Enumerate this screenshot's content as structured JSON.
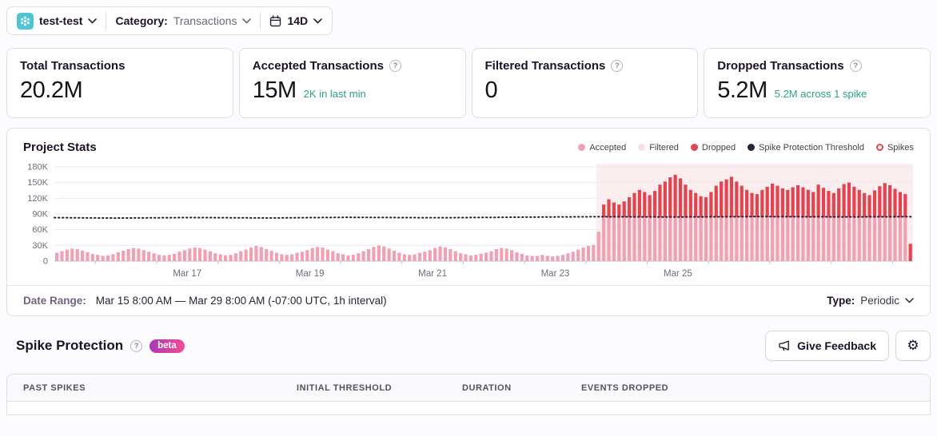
{
  "topbar": {
    "project_name": "test-test",
    "category_label": "Category:",
    "category_value": "Transactions",
    "period": "14D"
  },
  "cards": [
    {
      "title": "Total Transactions",
      "value": "20.2M",
      "sub": ""
    },
    {
      "title": "Accepted Transactions",
      "value": "15M",
      "sub": "2K in last min"
    },
    {
      "title": "Filtered Transactions",
      "value": "0",
      "sub": ""
    },
    {
      "title": "Dropped Transactions",
      "value": "5.2M",
      "sub": "5.2M across 1 spike"
    }
  ],
  "chart": {
    "title": "Project Stats"
  },
  "chart_data": {
    "type": "bar",
    "title": "Project Stats",
    "unit": "thousands of transactions per 2h bucket",
    "x_start": "Mar 15 8:00 AM",
    "x_end": "Mar 29 8:00 AM",
    "total_hours": 336,
    "xticks": [
      "Mar 17",
      "Mar 19",
      "Mar 21",
      "Mar 23",
      "Mar 25"
    ],
    "xtick_hours": [
      52,
      100,
      148,
      196,
      244
    ],
    "yticks": [
      [
        "180K",
        180
      ],
      [
        "150K",
        150
      ],
      [
        "120K",
        120
      ],
      [
        "90K",
        90
      ],
      [
        "60K",
        60
      ],
      [
        "30K",
        30
      ],
      [
        "0",
        0
      ]
    ],
    "ylim": [
      0,
      186
    ],
    "grid": true,
    "legend_position": "top-right",
    "spike_start_index": 106,
    "series": {
      "accepted": [
        16,
        19,
        22,
        24,
        23,
        20,
        17,
        14,
        12,
        10,
        11,
        13,
        17,
        20,
        23,
        25,
        24,
        21,
        18,
        15,
        12,
        11,
        12,
        14,
        18,
        21,
        24,
        26,
        25,
        22,
        19,
        15,
        13,
        11,
        12,
        15,
        19,
        22,
        26,
        29,
        27,
        23,
        20,
        16,
        13,
        12,
        13,
        16,
        18,
        21,
        25,
        27,
        26,
        22,
        19,
        15,
        13,
        11,
        12,
        15,
        19,
        23,
        27,
        30,
        28,
        24,
        20,
        16,
        13,
        12,
        13,
        16,
        18,
        21,
        25,
        28,
        26,
        23,
        19,
        15,
        13,
        11,
        12,
        14,
        16,
        19,
        23,
        25,
        24,
        21,
        17,
        14,
        11,
        10,
        10,
        12,
        10,
        9,
        10,
        12,
        15,
        18,
        22,
        26,
        29,
        31,
        56,
        84,
        84,
        84,
        84,
        84,
        84,
        84,
        84,
        84,
        84,
        84,
        84,
        84,
        84,
        84,
        84,
        84,
        84,
        84,
        84,
        84,
        84,
        84,
        84,
        84,
        84,
        84,
        84,
        84,
        84,
        84,
        84,
        84,
        84,
        84,
        84,
        84,
        84,
        84,
        84,
        84,
        84,
        84,
        84,
        84,
        84,
        84,
        84,
        84,
        84,
        84,
        84,
        84,
        84,
        84,
        84,
        84,
        84,
        84,
        84,
        0
      ],
      "dropped_start_index": 107,
      "dropped": [
        24,
        34,
        28,
        24,
        30,
        38,
        46,
        52,
        48,
        42,
        50,
        62,
        68,
        76,
        81,
        74,
        62,
        52,
        46,
        40,
        38,
        48,
        60,
        68,
        72,
        77,
        68,
        60,
        52,
        46,
        44,
        52,
        58,
        64,
        60,
        55,
        52,
        57,
        61,
        57,
        52,
        48,
        62,
        56,
        50,
        46,
        55,
        63,
        66,
        58,
        52,
        46,
        42,
        51,
        59,
        65,
        61,
        54,
        48,
        44,
        33
      ]
    },
    "threshold_line": [
      [
        0,
        83
      ],
      [
        0.07,
        82.2
      ],
      [
        0.16,
        83.2
      ],
      [
        0.25,
        82.4
      ],
      [
        0.34,
        83.6
      ],
      [
        0.45,
        82.8
      ],
      [
        0.55,
        84
      ],
      [
        0.63,
        84.8
      ],
      [
        0.72,
        84.2
      ],
      [
        0.82,
        85
      ],
      [
        0.92,
        84.4
      ],
      [
        1,
        84.8
      ]
    ],
    "legend": [
      {
        "label": "Accepted",
        "color": "#efa2b4",
        "type": "dot"
      },
      {
        "label": "Filtered",
        "color": "#f8dfe5",
        "type": "dot"
      },
      {
        "label": "Dropped",
        "color": "#e2454f",
        "type": "dot"
      },
      {
        "label": "Spike Protection Threshold",
        "color": "#2b2233",
        "type": "dot"
      },
      {
        "label": "Spikes",
        "color": "#e2454f",
        "type": "ring"
      }
    ],
    "colors": {
      "accepted_bar": "#efa2b4",
      "dropped_bar": "#e2454f",
      "threshold": "#2b2233",
      "spike_shading": "rgba(224,69,79,0.09)",
      "grid_line": "#eceaf0",
      "axis_line": "#c6c1cf",
      "axis_text": "#706a7c"
    }
  },
  "date_range": {
    "label": "Date Range:",
    "value": "Mar 15 8:00 AM — Mar 29 8:00 AM (-07:00 UTC, 1h interval)",
    "type_label": "Type:",
    "type_value": "Periodic"
  },
  "spike_section": {
    "title": "Spike Protection",
    "badge": "beta",
    "feedback_button": "Give Feedback"
  },
  "table": {
    "columns": [
      "Past Spikes",
      "Initial Threshold",
      "Duration",
      "Events Dropped"
    ]
  },
  "colors": {
    "accent_teal": "#2ba185",
    "project_icon_bg": "#4fc4d3",
    "beta_gradient_start": "#aa38b8",
    "beta_gradient_end": "#f14e93",
    "panel_border": "#e0dce5",
    "text_dark": "#1d1127"
  }
}
